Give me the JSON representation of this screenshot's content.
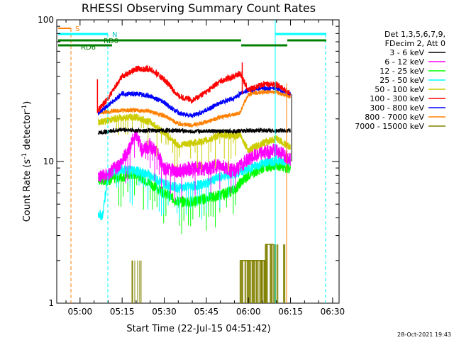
{
  "chart_data": {
    "type": "line",
    "title": "RHESSI Observing Summary Count Rates",
    "xlabel": "Start Time (22-Jul-15 04:51:42)",
    "ylabel_main": "Count Rate (s",
    "ylabel_sup": "-1",
    "ylabel_mid": " detector",
    "ylabel_tail": ")",
    "yscale": "log",
    "ylim": [
      1,
      100
    ],
    "xlim_min": [
      291.7,
      392.3
    ],
    "x_ticks": [
      {
        "m": 300,
        "label": "05:00"
      },
      {
        "m": 315,
        "label": "05:15"
      },
      {
        "m": 330,
        "label": "05:30"
      },
      {
        "m": 345,
        "label": "05:45"
      },
      {
        "m": 360,
        "label": "06:00"
      },
      {
        "m": 375,
        "label": "06:15"
      },
      {
        "m": 390,
        "label": "06:30"
      }
    ],
    "y_ticks": [
      {
        "v": 1,
        "label": "1"
      },
      {
        "v": 10,
        "label": "10"
      },
      {
        "v": 100,
        "label": "100"
      }
    ],
    "legend_header": [
      "Det 1,3,5,6,7,9,",
      "FDecim 2, Att 0"
    ],
    "series": [
      {
        "name": "3 - 6 keV",
        "color": "#000000",
        "values": [
          [
            306.5,
            16
          ],
          [
            310,
            16.3
          ],
          [
            315,
            16.8
          ],
          [
            320,
            16.5
          ],
          [
            325,
            16.5
          ],
          [
            330,
            16.5
          ],
          [
            335,
            16.6
          ],
          [
            340,
            16.2
          ],
          [
            345,
            16.5
          ],
          [
            350,
            16.3
          ],
          [
            355,
            16.4
          ],
          [
            360,
            16.5
          ],
          [
            365,
            16.6
          ],
          [
            370,
            16.5
          ],
          [
            375,
            16.6
          ]
        ]
      },
      {
        "name": "6 - 12 keV",
        "color": "#ff00ff",
        "values": [
          [
            306.5,
            7.8
          ],
          [
            310,
            8
          ],
          [
            315,
            10
          ],
          [
            318,
            13
          ],
          [
            320,
            16
          ],
          [
            322,
            12
          ],
          [
            325,
            13
          ],
          [
            328,
            11
          ],
          [
            330,
            9
          ],
          [
            335,
            8.5
          ],
          [
            340,
            9
          ],
          [
            345,
            8.8
          ],
          [
            350,
            9.5
          ],
          [
            355,
            8.5
          ],
          [
            357,
            9.2
          ],
          [
            360,
            10.5
          ],
          [
            365,
            11.5
          ],
          [
            370,
            12
          ],
          [
            375,
            10.5
          ]
        ]
      },
      {
        "name": "12 - 25 keV",
        "color": "#00ff00",
        "values": [
          [
            306.5,
            7.5
          ],
          [
            310,
            7.4
          ],
          [
            315,
            7.8
          ],
          [
            320,
            8.2
          ],
          [
            325,
            7
          ],
          [
            330,
            6
          ],
          [
            335,
            5.2
          ],
          [
            340,
            5.2
          ],
          [
            345,
            5.5
          ],
          [
            350,
            5.8
          ],
          [
            355,
            6.3
          ],
          [
            357,
            7
          ],
          [
            360,
            8
          ],
          [
            365,
            9
          ],
          [
            370,
            9.5
          ],
          [
            375,
            9
          ]
        ]
      },
      {
        "name": "25 - 50 keV",
        "color": "#00ffff",
        "values": [
          [
            306.5,
            4.3
          ],
          [
            308,
            4.1
          ],
          [
            310,
            8.2
          ],
          [
            315,
            8.8
          ],
          [
            320,
            8.6
          ],
          [
            325,
            8
          ],
          [
            330,
            7
          ],
          [
            335,
            6.5
          ],
          [
            340,
            6.7
          ],
          [
            345,
            7
          ],
          [
            350,
            7.8
          ],
          [
            355,
            8.2
          ],
          [
            360,
            8.8
          ],
          [
            365,
            9.7
          ],
          [
            370,
            10.2
          ],
          [
            375,
            10
          ]
        ]
      },
      {
        "name": "50 - 100 keV",
        "color": "#cccc00",
        "values": [
          [
            306.5,
            19
          ],
          [
            310,
            19.5
          ],
          [
            315,
            20.5
          ],
          [
            320,
            20.5
          ],
          [
            325,
            19
          ],
          [
            330,
            16
          ],
          [
            335,
            13
          ],
          [
            340,
            13.5
          ],
          [
            345,
            14
          ],
          [
            350,
            15.5
          ],
          [
            355,
            15
          ],
          [
            357,
            15.5
          ],
          [
            360,
            12
          ],
          [
            365,
            13.5
          ],
          [
            370,
            14.5
          ],
          [
            375,
            12.5
          ]
        ]
      },
      {
        "name": "100 - 300 keV",
        "color": "#ff0000",
        "values": [
          [
            306.5,
            23
          ],
          [
            310,
            28
          ],
          [
            315,
            40
          ],
          [
            320,
            45
          ],
          [
            325,
            45
          ],
          [
            330,
            38
          ],
          [
            335,
            29
          ],
          [
            340,
            27
          ],
          [
            345,
            31
          ],
          [
            350,
            37
          ],
          [
            355,
            40
          ],
          [
            357,
            42
          ],
          [
            360,
            32
          ],
          [
            365,
            35
          ],
          [
            370,
            35
          ],
          [
            375,
            30
          ]
        ]
      },
      {
        "name": "300 - 800 keV",
        "color": "#0000ff",
        "values": [
          [
            306.5,
            22
          ],
          [
            310,
            25
          ],
          [
            315,
            30
          ],
          [
            320,
            30
          ],
          [
            325,
            29
          ],
          [
            330,
            26
          ],
          [
            335,
            22
          ],
          [
            340,
            21
          ],
          [
            345,
            23
          ],
          [
            350,
            26
          ],
          [
            355,
            28
          ],
          [
            357,
            30
          ],
          [
            360,
            32
          ],
          [
            365,
            33
          ],
          [
            370,
            33
          ],
          [
            375,
            30
          ]
        ]
      },
      {
        "name": "800 - 7000 keV",
        "color": "#ff8000",
        "values": [
          [
            306.5,
            22
          ],
          [
            310,
            22.5
          ],
          [
            315,
            23
          ],
          [
            320,
            23
          ],
          [
            325,
            22.5
          ],
          [
            330,
            21
          ],
          [
            335,
            18.5
          ],
          [
            340,
            18
          ],
          [
            345,
            19
          ],
          [
            350,
            20.5
          ],
          [
            355,
            21.5
          ],
          [
            357,
            22
          ],
          [
            360,
            30
          ],
          [
            365,
            31
          ],
          [
            370,
            31
          ],
          [
            375,
            28.5
          ]
        ]
      },
      {
        "name": "7000 - 15000 keV",
        "color": "#808000",
        "values": []
      }
    ],
    "flags": [
      {
        "label": "S",
        "color": "#ff8000"
      },
      {
        "label": "N",
        "color": "#00ffff"
      },
      {
        "label": "RD0",
        "color": "#008000"
      },
      {
        "label": "RD6",
        "color": "#008000"
      }
    ],
    "timestamp": "28-Oct-2021 19:43"
  }
}
